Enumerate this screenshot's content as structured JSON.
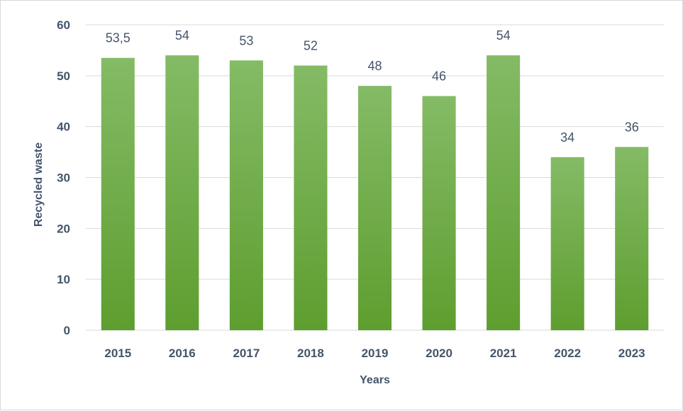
{
  "chart_data": {
    "type": "bar",
    "categories": [
      "2015",
      "2016",
      "2017",
      "2018",
      "2019",
      "2020",
      "2021",
      "2022",
      "2023"
    ],
    "values": [
      53.5,
      54,
      53,
      52,
      48,
      46,
      54,
      34,
      36
    ],
    "data_labels": [
      "53,5",
      "54",
      "53",
      "52",
      "48",
      "46",
      "54",
      "34",
      "36"
    ],
    "xlabel": "Years",
    "ylabel": "Recycled waste",
    "ylim": [
      0,
      60
    ],
    "yticks": [
      0,
      10,
      20,
      30,
      40,
      50,
      60
    ],
    "grid": true,
    "legend": "none",
    "bar_color_top": "#84bb66",
    "bar_color_bottom": "#5e9e2f",
    "text_color": "#44546a",
    "grid_color": "#d9d9d9"
  }
}
